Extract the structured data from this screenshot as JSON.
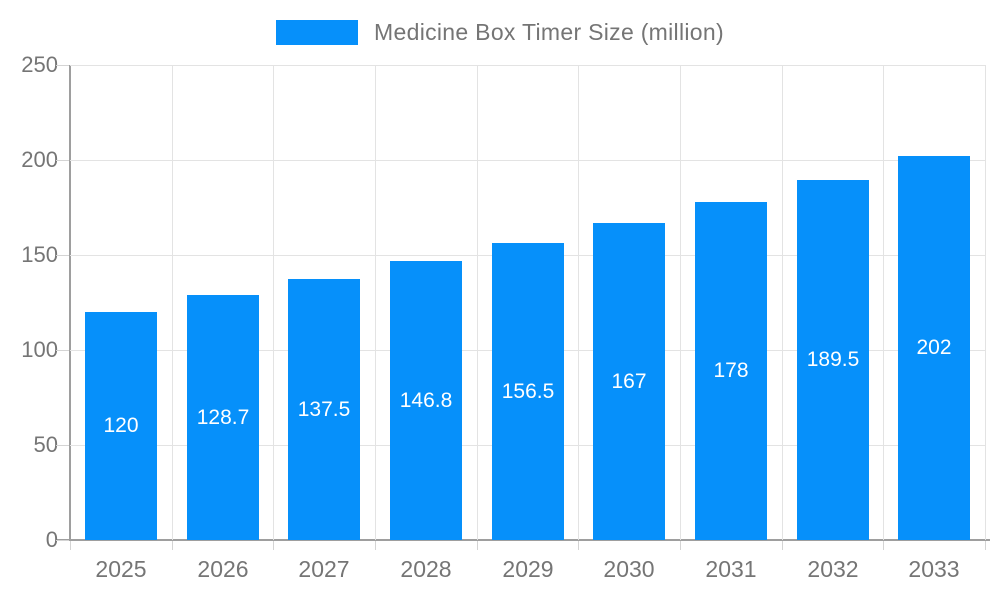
{
  "chart_data": {
    "type": "bar",
    "categories": [
      "2025",
      "2026",
      "2027",
      "2028",
      "2029",
      "2030",
      "2031",
      "2032",
      "2033"
    ],
    "series": [
      {
        "name": "Medicine Box Timer Size (million)",
        "values": [
          120,
          128.7,
          137.5,
          146.8,
          156.5,
          167,
          178,
          189.5,
          202
        ]
      }
    ],
    "title": "",
    "xlabel": "",
    "ylabel": "",
    "ylim": [
      0,
      250
    ],
    "ytick_step": 50,
    "yticks": [
      0,
      50,
      100,
      150,
      200,
      250
    ],
    "grid": true,
    "legend_position": "top-center",
    "bar_color": "#0690fa",
    "bar_label_color": "#ffffff",
    "axis_line_color": "#9e9e9e",
    "gridline_color": "#e3e3e3",
    "tick_mark_color": "#d4d4d4",
    "axis_text_color": "#757575"
  }
}
